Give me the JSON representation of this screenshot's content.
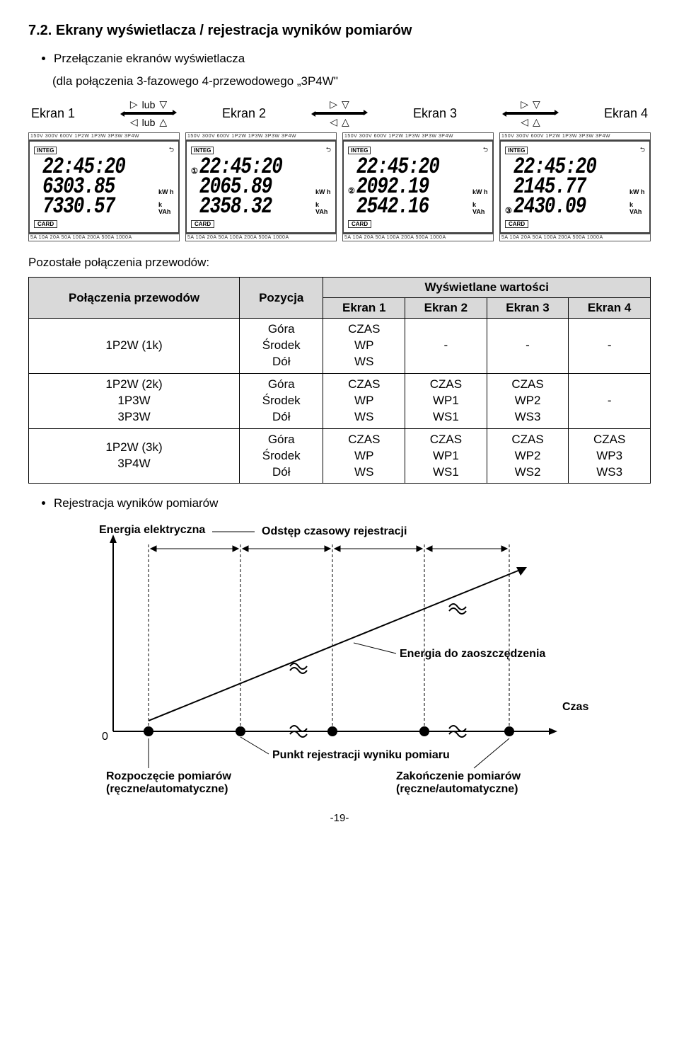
{
  "heading": "7.2. Ekrany wyświetlacza / rejestracja wyników pomiarów",
  "bullet1": "Przełączanie ekranów wyświetlacza",
  "subline": "(dla połączenia 3-fazowego 4-przewodowego „3P4W\"",
  "nav": {
    "labels": [
      "Ekran 1",
      "Ekran 2",
      "Ekran 3",
      "Ekran 4"
    ],
    "lub": "lub"
  },
  "lcd_top_bar": "150V 300V 600V        1P2W 1P3W 3P3W 3P4W",
  "lcd_bot_bar": "5A  10A  20A  50A 100A 200A 500A 1000A",
  "lcd_integ": "INTEG",
  "lcd_card": "CARD",
  "screens": [
    {
      "lines": [
        {
          "dot": "",
          "val": "22:45:20",
          "unit": ""
        },
        {
          "dot": "",
          "val": "6303.85",
          "unit": "kW h"
        },
        {
          "dot": "",
          "val": "7330.57",
          "unit": "k VAh"
        }
      ]
    },
    {
      "lines": [
        {
          "dot": "①",
          "val": "22:45:20",
          "unit": ""
        },
        {
          "dot": "",
          "val": "2065.89",
          "unit": "kW h"
        },
        {
          "dot": "",
          "val": "2358.32",
          "unit": "k VAh"
        }
      ]
    },
    {
      "lines": [
        {
          "dot": "",
          "val": "22:45:20",
          "unit": ""
        },
        {
          "dot": "②",
          "val": "2092.19",
          "unit": "kW h"
        },
        {
          "dot": "",
          "val": "2542.16",
          "unit": "k VAh"
        }
      ]
    },
    {
      "lines": [
        {
          "dot": "",
          "val": "22:45:20",
          "unit": ""
        },
        {
          "dot": "",
          "val": "2145.77",
          "unit": "kW h"
        },
        {
          "dot": "③",
          "val": "2430.09",
          "unit": "k VAh"
        }
      ]
    }
  ],
  "section2": "Pozostałe połączenia przewodów:",
  "table": {
    "head": {
      "col1": "Połączenia przewodów",
      "col2": "Pozycja",
      "col_span": "Wyświetlane wartości",
      "sub": [
        "Ekran 1",
        "Ekran 2",
        "Ekran 3",
        "Ekran 4"
      ]
    },
    "rows": [
      {
        "c1": "1P2W (1k)",
        "c2": "Góra\nŚrodek\nDół",
        "e1": "CZAS\nWP\nWS",
        "e2": "-",
        "e3": "-",
        "e4": "-"
      },
      {
        "c1": "1P2W (2k)\n1P3W\n3P3W",
        "c2": "Góra\nŚrodek\nDół",
        "e1": "CZAS\nWP\nWS",
        "e2": "CZAS\nWP1\nWS1",
        "e3": "CZAS\nWP2\nWS3",
        "e4": "-"
      },
      {
        "c1": "1P2W (3k)\n3P4W",
        "c2": "Góra\nŚrodek\nDół",
        "e1": "CZAS\nWP\nWS",
        "e2": "CZAS\nWP1\nWS1",
        "e3": "CZAS\nWP2\nWS2",
        "e4": "CZAS\nWP3\nWS3"
      }
    ]
  },
  "bullet2": "Rejestracja wyników pomiarów",
  "diagram": {
    "energy_label": "Energia elektryczna",
    "interval_label": "Odstęp czasowy rejestracji",
    "save_label": "Energia do zaoszczędzenia",
    "czas_label": "Czas",
    "reg_point_label": "Punkt rejestracji wyniku pomiaru",
    "start_label": "Rozpoczęcie pomiarów\n(ręczne/automatyczne)",
    "end_label": "Zakończenie pomiarów\n(ręczne/automatyczne)",
    "zero": "0"
  },
  "pagenum": "-19-"
}
